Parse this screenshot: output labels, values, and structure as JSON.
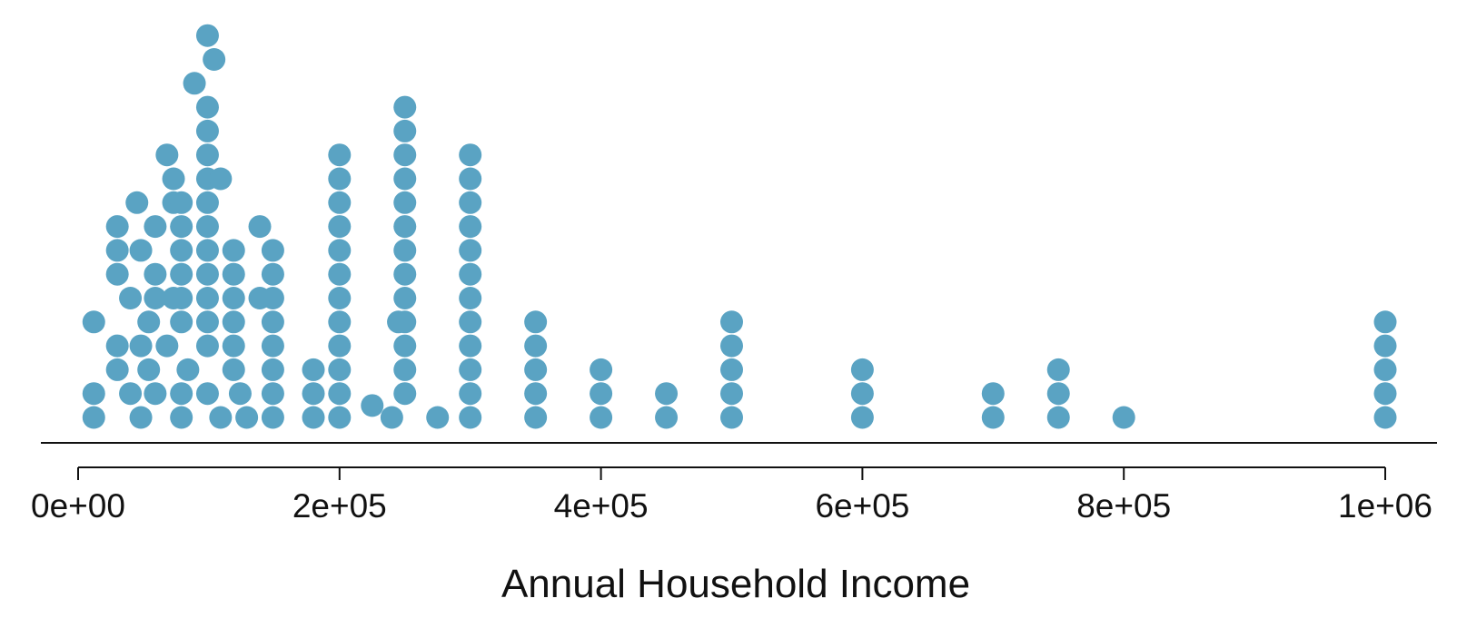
{
  "chart_data": {
    "type": "scatter",
    "style": "stacked dot plot",
    "xlabel": "Annual Household Income",
    "ylabel": "",
    "xlim": [
      0,
      1000000
    ],
    "grid": false,
    "legend": "none",
    "dot_color": "#5aa3c3",
    "x_ticks": [
      {
        "value": 0,
        "label": "0e+00"
      },
      {
        "value": 200000,
        "label": "2e+05"
      },
      {
        "value": 400000,
        "label": "4e+05"
      },
      {
        "value": 600000,
        "label": "6e+05"
      },
      {
        "value": 800000,
        "label": "8e+05"
      },
      {
        "value": 1000000,
        "label": "1e+06"
      }
    ],
    "points": [
      {
        "x": 12000,
        "stack": 1
      },
      {
        "x": 12000,
        "stack": 2
      },
      {
        "x": 12000,
        "stack": 5
      },
      {
        "x": 30000,
        "stack": 3
      },
      {
        "x": 30000,
        "stack": 4
      },
      {
        "x": 30000,
        "stack": 7
      },
      {
        "x": 30000,
        "stack": 8
      },
      {
        "x": 30000,
        "stack": 9
      },
      {
        "x": 40000,
        "stack": 2
      },
      {
        "x": 40000,
        "stack": 6
      },
      {
        "x": 45000,
        "stack": 10
      },
      {
        "x": 48000,
        "stack": 1
      },
      {
        "x": 48000,
        "stack": 4
      },
      {
        "x": 48000,
        "stack": 8
      },
      {
        "x": 54000,
        "stack": 3
      },
      {
        "x": 54000,
        "stack": 5
      },
      {
        "x": 59000,
        "stack": 2
      },
      {
        "x": 59000,
        "stack": 6
      },
      {
        "x": 59000,
        "stack": 7
      },
      {
        "x": 59000,
        "stack": 9
      },
      {
        "x": 68000,
        "stack": 4
      },
      {
        "x": 68000,
        "stack": 12
      },
      {
        "x": 73000,
        "stack": 6
      },
      {
        "x": 73000,
        "stack": 10
      },
      {
        "x": 73000,
        "stack": 11
      },
      {
        "x": 79000,
        "stack": 1
      },
      {
        "x": 79000,
        "stack": 2
      },
      {
        "x": 79000,
        "stack": 5
      },
      {
        "x": 79000,
        "stack": 6
      },
      {
        "x": 79000,
        "stack": 7
      },
      {
        "x": 79000,
        "stack": 8
      },
      {
        "x": 79000,
        "stack": 9
      },
      {
        "x": 79000,
        "stack": 10
      },
      {
        "x": 84000,
        "stack": 3
      },
      {
        "x": 89000,
        "stack": 15
      },
      {
        "x": 99000,
        "stack": 2
      },
      {
        "x": 99000,
        "stack": 4
      },
      {
        "x": 99000,
        "stack": 5
      },
      {
        "x": 99000,
        "stack": 6
      },
      {
        "x": 99000,
        "stack": 7
      },
      {
        "x": 99000,
        "stack": 8
      },
      {
        "x": 99000,
        "stack": 9
      },
      {
        "x": 99000,
        "stack": 10
      },
      {
        "x": 99000,
        "stack": 11
      },
      {
        "x": 99000,
        "stack": 12
      },
      {
        "x": 99000,
        "stack": 13
      },
      {
        "x": 99000,
        "stack": 14
      },
      {
        "x": 99000,
        "stack": 17
      },
      {
        "x": 104000,
        "stack": 16
      },
      {
        "x": 109000,
        "stack": 1
      },
      {
        "x": 109000,
        "stack": 11
      },
      {
        "x": 119000,
        "stack": 3
      },
      {
        "x": 119000,
        "stack": 4
      },
      {
        "x": 119000,
        "stack": 5
      },
      {
        "x": 119000,
        "stack": 6
      },
      {
        "x": 119000,
        "stack": 7
      },
      {
        "x": 119000,
        "stack": 8
      },
      {
        "x": 124000,
        "stack": 2
      },
      {
        "x": 129000,
        "stack": 1
      },
      {
        "x": 139000,
        "stack": 6
      },
      {
        "x": 139000,
        "stack": 9
      },
      {
        "x": 149000,
        "stack": 1
      },
      {
        "x": 149000,
        "stack": 2
      },
      {
        "x": 149000,
        "stack": 3
      },
      {
        "x": 149000,
        "stack": 4
      },
      {
        "x": 149000,
        "stack": 5
      },
      {
        "x": 149000,
        "stack": 6
      },
      {
        "x": 149000,
        "stack": 7
      },
      {
        "x": 149000,
        "stack": 8
      },
      {
        "x": 180000,
        "stack": 1
      },
      {
        "x": 180000,
        "stack": 2
      },
      {
        "x": 180000,
        "stack": 3
      },
      {
        "x": 200000,
        "stack": 1
      },
      {
        "x": 200000,
        "stack": 2
      },
      {
        "x": 200000,
        "stack": 3
      },
      {
        "x": 200000,
        "stack": 4
      },
      {
        "x": 200000,
        "stack": 5
      },
      {
        "x": 200000,
        "stack": 6
      },
      {
        "x": 200000,
        "stack": 7
      },
      {
        "x": 200000,
        "stack": 8
      },
      {
        "x": 200000,
        "stack": 9
      },
      {
        "x": 200000,
        "stack": 10
      },
      {
        "x": 200000,
        "stack": 11
      },
      {
        "x": 200000,
        "stack": 12
      },
      {
        "x": 225000,
        "stack": 1.5
      },
      {
        "x": 240000,
        "stack": 1
      },
      {
        "x": 245000,
        "stack": 5
      },
      {
        "x": 250000,
        "stack": 2
      },
      {
        "x": 250000,
        "stack": 3
      },
      {
        "x": 250000,
        "stack": 4
      },
      {
        "x": 250000,
        "stack": 5
      },
      {
        "x": 250000,
        "stack": 6
      },
      {
        "x": 250000,
        "stack": 7
      },
      {
        "x": 250000,
        "stack": 8
      },
      {
        "x": 250000,
        "stack": 9
      },
      {
        "x": 250000,
        "stack": 10
      },
      {
        "x": 250000,
        "stack": 11
      },
      {
        "x": 250000,
        "stack": 12
      },
      {
        "x": 250000,
        "stack": 13
      },
      {
        "x": 250000,
        "stack": 14
      },
      {
        "x": 275000,
        "stack": 1
      },
      {
        "x": 300000,
        "stack": 1
      },
      {
        "x": 300000,
        "stack": 2
      },
      {
        "x": 300000,
        "stack": 3
      },
      {
        "x": 300000,
        "stack": 4
      },
      {
        "x": 300000,
        "stack": 5
      },
      {
        "x": 300000,
        "stack": 6
      },
      {
        "x": 300000,
        "stack": 7
      },
      {
        "x": 300000,
        "stack": 8
      },
      {
        "x": 300000,
        "stack": 9
      },
      {
        "x": 300000,
        "stack": 10
      },
      {
        "x": 300000,
        "stack": 11
      },
      {
        "x": 300000,
        "stack": 12
      },
      {
        "x": 350000,
        "stack": 1
      },
      {
        "x": 350000,
        "stack": 2
      },
      {
        "x": 350000,
        "stack": 3
      },
      {
        "x": 350000,
        "stack": 4
      },
      {
        "x": 350000,
        "stack": 5
      },
      {
        "x": 400000,
        "stack": 1
      },
      {
        "x": 400000,
        "stack": 2
      },
      {
        "x": 400000,
        "stack": 3
      },
      {
        "x": 450000,
        "stack": 1
      },
      {
        "x": 450000,
        "stack": 2
      },
      {
        "x": 500000,
        "stack": 1
      },
      {
        "x": 500000,
        "stack": 2
      },
      {
        "x": 500000,
        "stack": 3
      },
      {
        "x": 500000,
        "stack": 4
      },
      {
        "x": 500000,
        "stack": 5
      },
      {
        "x": 600000,
        "stack": 1
      },
      {
        "x": 600000,
        "stack": 2
      },
      {
        "x": 600000,
        "stack": 3
      },
      {
        "x": 700000,
        "stack": 1
      },
      {
        "x": 700000,
        "stack": 2
      },
      {
        "x": 750000,
        "stack": 1
      },
      {
        "x": 750000,
        "stack": 2
      },
      {
        "x": 750000,
        "stack": 3
      },
      {
        "x": 800000,
        "stack": 1
      },
      {
        "x": 1000000,
        "stack": 1
      },
      {
        "x": 1000000,
        "stack": 2
      },
      {
        "x": 1000000,
        "stack": 3
      },
      {
        "x": 1000000,
        "stack": 4
      },
      {
        "x": 1000000,
        "stack": 5
      }
    ]
  }
}
